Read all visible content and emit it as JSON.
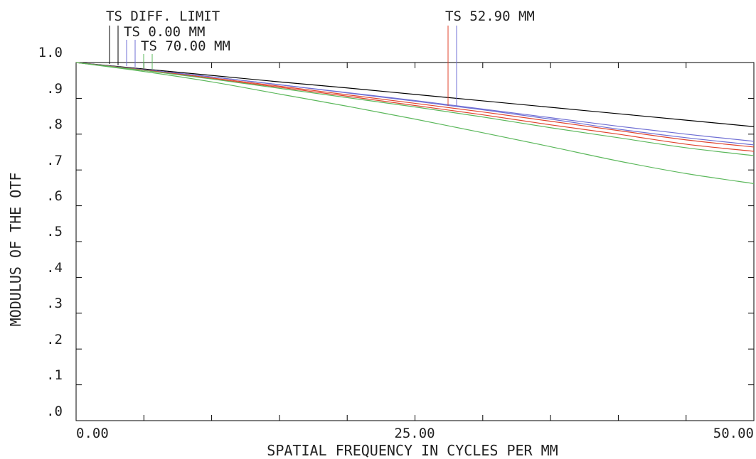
{
  "chart_data": {
    "type": "line",
    "title": "",
    "xlabel": "SPATIAL FREQUENCY IN CYCLES PER MM",
    "ylabel": "MODULUS OF THE OTF",
    "xlim": [
      0,
      50
    ],
    "ylim": [
      0,
      1.0
    ],
    "x_tick_labels": [
      "0.00",
      "25.00",
      "50.00"
    ],
    "y_tick_labels": [
      "1.0",
      ".9",
      ".8",
      ".7",
      ".6",
      ".5",
      ".4",
      ".3",
      ".2",
      ".1",
      ".0"
    ],
    "grid": false,
    "legend_labels": {
      "diff_limit": "TS DIFF. LIMIT",
      "field_0": "TS 0.00 MM",
      "field_70": "TS 70.00 MM",
      "field_52": "TS 52.90 MM"
    },
    "x": [
      0,
      5,
      10,
      15,
      20,
      25,
      30,
      35,
      40,
      45,
      50
    ],
    "series": [
      {
        "name": "TS DIFF. LIMIT",
        "color": "#000000",
        "values": [
          1.0,
          0.982,
          0.964,
          0.946,
          0.929,
          0.911,
          0.893,
          0.875,
          0.857,
          0.839,
          0.821
        ]
      },
      {
        "name": "TS 0.00 MM",
        "color": "#6f6fd4",
        "values": [
          1.0,
          0.98,
          0.96,
          0.938,
          0.916,
          0.894,
          0.87,
          0.846,
          0.822,
          0.8,
          0.78
        ]
      },
      {
        "name": "TS 0.00 MM",
        "color": "#6f6fd4",
        "values": [
          1.0,
          0.98,
          0.96,
          0.938,
          0.915,
          0.892,
          0.868,
          0.842,
          0.814,
          0.79,
          0.77
        ]
      },
      {
        "name": "TS 52.90 MM",
        "color": "#e0452f",
        "values": [
          1.0,
          0.979,
          0.957,
          0.934,
          0.91,
          0.886,
          0.862,
          0.836,
          0.81,
          0.784,
          0.764
        ]
      },
      {
        "name": "TS 52.90 MM",
        "color": "#e0452f",
        "values": [
          1.0,
          0.978,
          0.955,
          0.931,
          0.906,
          0.88,
          0.854,
          0.826,
          0.8,
          0.772,
          0.752
        ]
      },
      {
        "name": "TS 70.00 MM",
        "color": "#5cb85c",
        "values": [
          1.0,
          0.978,
          0.954,
          0.928,
          0.902,
          0.876,
          0.848,
          0.818,
          0.79,
          0.762,
          0.74
        ]
      },
      {
        "name": "TS 70.00 MM",
        "color": "#5cb85c",
        "values": [
          1.0,
          0.975,
          0.946,
          0.912,
          0.878,
          0.842,
          0.804,
          0.765,
          0.725,
          0.69,
          0.662
        ]
      }
    ]
  }
}
